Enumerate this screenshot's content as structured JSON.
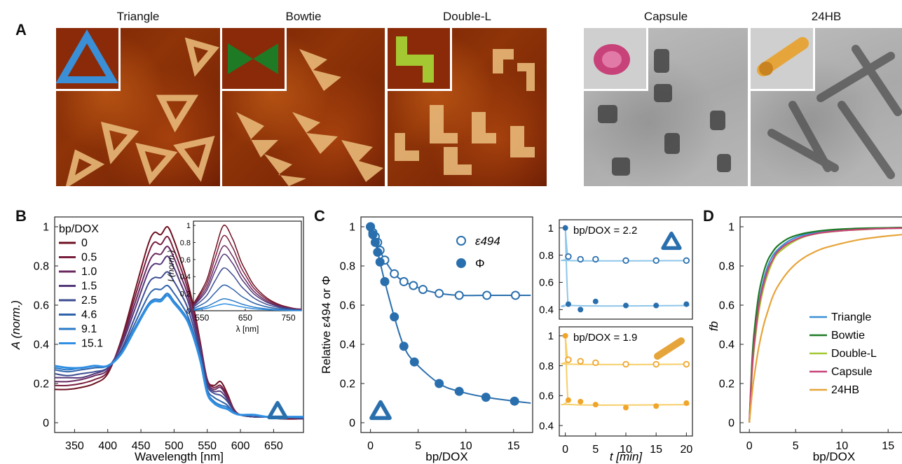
{
  "panel_labels": {
    "a": "A",
    "b": "B",
    "c": "C",
    "d": "D"
  },
  "structures": [
    "Triangle",
    "Bowtie",
    "Double-L",
    "Capsule",
    "24HB"
  ],
  "colors": {
    "triangle": "#3a8fd6",
    "bowtie": "#1f7a26",
    "double_l": "#a4c832",
    "capsule": "#c8427a",
    "hb24": "#e6a53a",
    "blue_main": "#2a6fad",
    "c_light_blue": "#8ec6ea",
    "c_orange": "#f0a52a",
    "c_orange_light": "#f7cf6a"
  },
  "chart_data": [
    {
      "id": "B",
      "type": "line",
      "xlabel": "Wavelength [nm]",
      "ylabel": "A (norm.)",
      "xlim": [
        320,
        695
      ],
      "ylim": [
        -0.05,
        1.05
      ],
      "xticks": [
        350,
        400,
        450,
        500,
        550,
        600,
        650
      ],
      "yticks": [
        0,
        0.2,
        0.4,
        0.6,
        0.8,
        1
      ],
      "ytick_labels": [
        "0",
        "0.2",
        "0.4",
        "0.6",
        "0.8",
        "1"
      ],
      "legend_title": "bp/DOX",
      "legend": [
        "0",
        "0.5",
        "1.0",
        "1.5",
        "2.5",
        "4.6",
        "9.1",
        "15.1"
      ],
      "series_colors": [
        "#6e1020",
        "#7a1e3e",
        "#6a2a60",
        "#54387a",
        "#3d4c92",
        "#2e62ab",
        "#2a7ac7",
        "#2f8fe3"
      ],
      "x": [
        320,
        340,
        360,
        380,
        400,
        420,
        440,
        460,
        470,
        480,
        490,
        500,
        510,
        520,
        530,
        540,
        550,
        560,
        570,
        580,
        590,
        600,
        620,
        640,
        660,
        695
      ],
      "series_values": [
        [
          0.17,
          0.17,
          0.18,
          0.2,
          0.25,
          0.42,
          0.66,
          0.9,
          0.97,
          0.96,
          1.0,
          0.93,
          0.83,
          0.72,
          0.58,
          0.4,
          0.22,
          0.19,
          0.21,
          0.15,
          0.07,
          0.04,
          0.03,
          0.03,
          0.02,
          0.02
        ],
        [
          0.19,
          0.19,
          0.2,
          0.22,
          0.26,
          0.41,
          0.63,
          0.85,
          0.92,
          0.91,
          0.95,
          0.88,
          0.79,
          0.69,
          0.56,
          0.39,
          0.22,
          0.18,
          0.19,
          0.14,
          0.07,
          0.04,
          0.03,
          0.03,
          0.02,
          0.02
        ],
        [
          0.21,
          0.21,
          0.22,
          0.24,
          0.27,
          0.4,
          0.6,
          0.8,
          0.86,
          0.86,
          0.9,
          0.84,
          0.75,
          0.66,
          0.53,
          0.38,
          0.21,
          0.17,
          0.18,
          0.13,
          0.06,
          0.04,
          0.03,
          0.03,
          0.03,
          0.02
        ],
        [
          0.23,
          0.23,
          0.23,
          0.25,
          0.28,
          0.39,
          0.57,
          0.76,
          0.81,
          0.81,
          0.85,
          0.79,
          0.71,
          0.63,
          0.51,
          0.37,
          0.2,
          0.16,
          0.16,
          0.12,
          0.06,
          0.04,
          0.03,
          0.03,
          0.03,
          0.02
        ],
        [
          0.25,
          0.24,
          0.25,
          0.26,
          0.28,
          0.37,
          0.53,
          0.7,
          0.74,
          0.74,
          0.77,
          0.72,
          0.66,
          0.59,
          0.48,
          0.35,
          0.19,
          0.15,
          0.14,
          0.11,
          0.06,
          0.04,
          0.03,
          0.03,
          0.03,
          0.02
        ],
        [
          0.27,
          0.26,
          0.27,
          0.28,
          0.29,
          0.36,
          0.5,
          0.64,
          0.68,
          0.68,
          0.7,
          0.66,
          0.61,
          0.55,
          0.45,
          0.33,
          0.17,
          0.13,
          0.11,
          0.09,
          0.05,
          0.04,
          0.04,
          0.03,
          0.03,
          0.03
        ],
        [
          0.28,
          0.27,
          0.28,
          0.29,
          0.29,
          0.35,
          0.48,
          0.6,
          0.63,
          0.63,
          0.66,
          0.62,
          0.58,
          0.53,
          0.44,
          0.32,
          0.16,
          0.11,
          0.09,
          0.08,
          0.05,
          0.04,
          0.04,
          0.03,
          0.03,
          0.03
        ],
        [
          0.29,
          0.28,
          0.28,
          0.29,
          0.29,
          0.35,
          0.47,
          0.59,
          0.62,
          0.62,
          0.65,
          0.61,
          0.57,
          0.52,
          0.43,
          0.31,
          0.15,
          0.1,
          0.08,
          0.07,
          0.05,
          0.04,
          0.04,
          0.03,
          0.03,
          0.03
        ]
      ],
      "inset": {
        "xlabel": "λ [nm]",
        "ylabel": "I (norm.)",
        "xlim": [
          530,
          780
        ],
        "ylim": [
          0,
          1.05
        ],
        "xticks": [
          550,
          650,
          750
        ],
        "yticks": [
          0,
          0.2,
          0.4,
          0.6,
          0.8,
          1
        ],
        "ytick_labels": [
          "0",
          "0.2",
          "0.4",
          "0.6",
          "0.8",
          "1"
        ],
        "x": [
          530,
          560,
          580,
          600,
          620,
          630,
          640,
          650,
          670,
          700,
          730,
          760,
          780
        ],
        "peaks": [
          1.0,
          0.88,
          0.76,
          0.66,
          0.5,
          0.3,
          0.14,
          0.08
        ]
      }
    },
    {
      "id": "C-main",
      "type": "scatter",
      "xlabel": "bp/DOX",
      "ylabel": "Relative ε494 or Φ",
      "xlim": [
        -1,
        17
      ],
      "ylim": [
        -0.05,
        1.05
      ],
      "xticks": [
        0,
        5,
        10,
        15
      ],
      "yticks": [
        0,
        0.2,
        0.4,
        0.6,
        0.8,
        1
      ],
      "ytick_labels": [
        "0",
        "0.2",
        "0.4",
        "0.6",
        "0.8",
        "1"
      ],
      "legend": [
        "ε494",
        "Φ"
      ],
      "epsilon_x": [
        0,
        0.25,
        0.5,
        0.75,
        1.0,
        1.5,
        2.5,
        3.5,
        4.5,
        5.5,
        7.2,
        9.3,
        12.2,
        15.2
      ],
      "epsilon_y": [
        1.0,
        0.97,
        0.95,
        0.92,
        0.88,
        0.83,
        0.76,
        0.72,
        0.7,
        0.68,
        0.66,
        0.65,
        0.65,
        0.65
      ],
      "phi_x": [
        0,
        0.25,
        0.5,
        0.75,
        1.0,
        1.5,
        2.5,
        3.5,
        4.6,
        7.2,
        9.3,
        12.1,
        15.1
      ],
      "phi_y": [
        1.0,
        0.96,
        0.92,
        0.87,
        0.82,
        0.72,
        0.54,
        0.39,
        0.31,
        0.2,
        0.16,
        0.13,
        0.11
      ]
    },
    {
      "id": "C-top",
      "type": "scatter",
      "xlabel": "",
      "annotation": "bp/DOX = 2.2",
      "xlim": [
        -1,
        21
      ],
      "ylim": [
        0.33,
        1.06
      ],
      "yticks": [
        0.4,
        0.6,
        0.8,
        1
      ],
      "ytick_labels": [
        "0.4",
        "0.6",
        "0.8",
        "1"
      ],
      "x": [
        0,
        0.5,
        2.5,
        5,
        10,
        15,
        20
      ],
      "epsilon_y": [
        null,
        0.79,
        0.77,
        0.77,
        0.76,
        0.76,
        0.76
      ],
      "phi_y": [
        1.0,
        0.44,
        0.4,
        0.46,
        0.43,
        0.43,
        0.44
      ],
      "epsilon_fit": 0.76,
      "phi_fit": 0.43
    },
    {
      "id": "C-bottom",
      "type": "scatter",
      "xlabel": "t [min]",
      "annotation": "bp/DOX = 1.9",
      "xlim": [
        -1,
        21
      ],
      "xticks": [
        0,
        5,
        10,
        15,
        20
      ],
      "ylim": [
        0.33,
        1.06
      ],
      "yticks": [
        0.4,
        0.6,
        0.8,
        1
      ],
      "ytick_labels": [
        "0.4",
        "0.6",
        "0.8",
        "1"
      ],
      "x": [
        0,
        0.5,
        2.5,
        5,
        10,
        15,
        20
      ],
      "epsilon_y": [
        null,
        0.84,
        0.83,
        0.82,
        0.81,
        0.81,
        0.81
      ],
      "phi_y": [
        1.0,
        0.57,
        0.56,
        0.54,
        0.52,
        0.53,
        0.55
      ],
      "epsilon_fit": 0.81,
      "phi_fit": 0.54
    },
    {
      "id": "D",
      "type": "line",
      "xlabel": "bp/DOX",
      "ylabel": "fb",
      "xlim": [
        -1,
        16.5
      ],
      "ylim": [
        -0.05,
        1.05
      ],
      "xticks": [
        0,
        5,
        10,
        15
      ],
      "yticks": [
        0,
        0.2,
        0.4,
        0.6,
        0.8,
        1
      ],
      "ytick_labels": [
        "0",
        "0.2",
        "0.4",
        "0.6",
        "0.8",
        "1"
      ],
      "legend": [
        "Triangle",
        "Bowtie",
        "Double-L",
        "Capsule",
        "24HB"
      ],
      "series_colors": [
        "#3a8fd6",
        "#1f7a26",
        "#a4c832",
        "#c8427a",
        "#e6a53a"
      ],
      "x": [
        0,
        0.25,
        0.5,
        1,
        1.5,
        2,
        2.5,
        3,
        4,
        5,
        6,
        7,
        8,
        10,
        12,
        14,
        16.5
      ],
      "series_values": [
        [
          0,
          0.24,
          0.4,
          0.6,
          0.72,
          0.8,
          0.85,
          0.88,
          0.92,
          0.945,
          0.96,
          0.97,
          0.978,
          0.985,
          0.99,
          0.993,
          0.995
        ],
        [
          0,
          0.28,
          0.45,
          0.65,
          0.76,
          0.83,
          0.87,
          0.9,
          0.935,
          0.955,
          0.967,
          0.975,
          0.981,
          0.988,
          0.992,
          0.994,
          0.996
        ],
        [
          0,
          0.22,
          0.37,
          0.56,
          0.68,
          0.76,
          0.82,
          0.86,
          0.9,
          0.93,
          0.95,
          0.962,
          0.97,
          0.98,
          0.985,
          0.99,
          0.993
        ],
        [
          0,
          0.24,
          0.39,
          0.59,
          0.7,
          0.78,
          0.83,
          0.87,
          0.91,
          0.935,
          0.952,
          0.963,
          0.971,
          0.98,
          0.986,
          0.99,
          0.993
        ],
        [
          0,
          0.13,
          0.23,
          0.38,
          0.49,
          0.57,
          0.64,
          0.69,
          0.76,
          0.81,
          0.845,
          0.87,
          0.89,
          0.915,
          0.935,
          0.948,
          0.96
        ]
      ]
    }
  ]
}
